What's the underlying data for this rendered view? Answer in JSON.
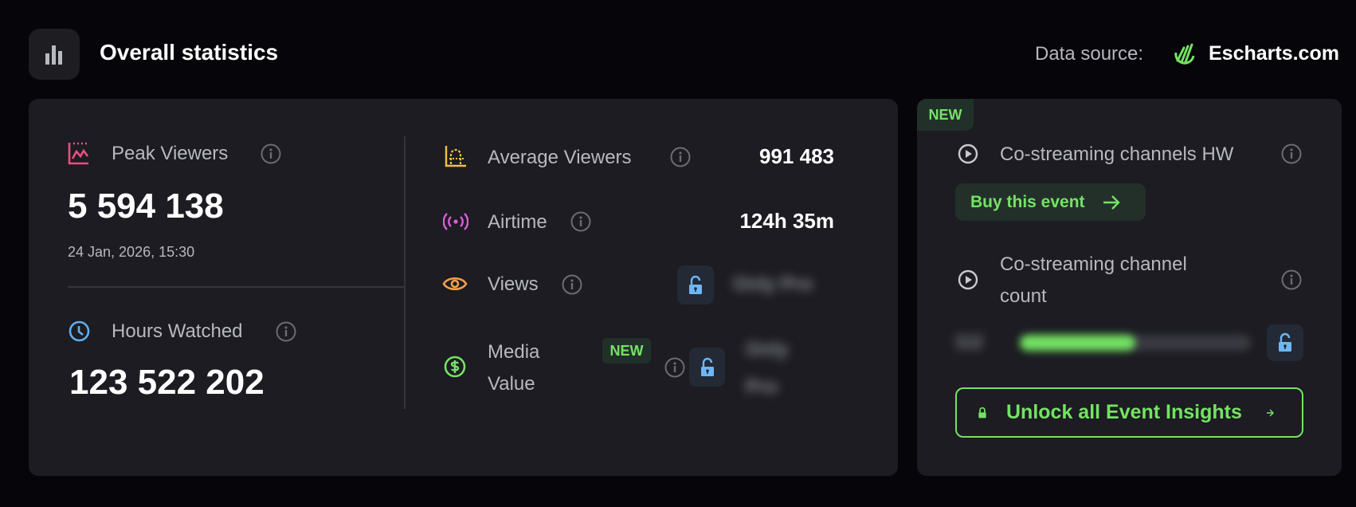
{
  "header": {
    "title": "Overall statistics",
    "icon": "bar-chart-icon",
    "data_source_label": "Data source:",
    "data_source_name": "Escharts.com"
  },
  "colors": {
    "accent": "#74e363",
    "peak": "#e8507e",
    "average": "#f0c43c",
    "airtime": "#d95fd9",
    "views": "#f0a04a",
    "media": "#74e363",
    "hours": "#5fb0f0",
    "lock": "#6fb6f5"
  },
  "left": {
    "peak": {
      "label": "Peak Viewers",
      "value": "5 594 138",
      "date": "24 Jan, 2026, 15:30",
      "icon": "peak-chart-icon"
    },
    "hours": {
      "label": "Hours Watched",
      "value": "123 522 202",
      "icon": "clock-icon"
    }
  },
  "middle": {
    "average": {
      "label": "Average Viewers",
      "value": "991 483"
    },
    "airtime": {
      "label": "Airtime",
      "value": "124h 35m"
    },
    "views": {
      "label": "Views",
      "locked_value": "Only Pro"
    },
    "media": {
      "label_line1": "Media",
      "label_line2": "Value",
      "badge": "NEW",
      "locked_line1": "Only",
      "locked_line2": "Pro"
    }
  },
  "right": {
    "badge": "NEW",
    "hw": {
      "label": "Co-streaming channels HW"
    },
    "buy_button": "Buy this event",
    "count": {
      "label_line1": "Co-streaming channel",
      "label_line2": "count",
      "locked_value": "112",
      "bar_fill": 0.5
    },
    "unlock_button": "Unlock all Event Insights"
  }
}
